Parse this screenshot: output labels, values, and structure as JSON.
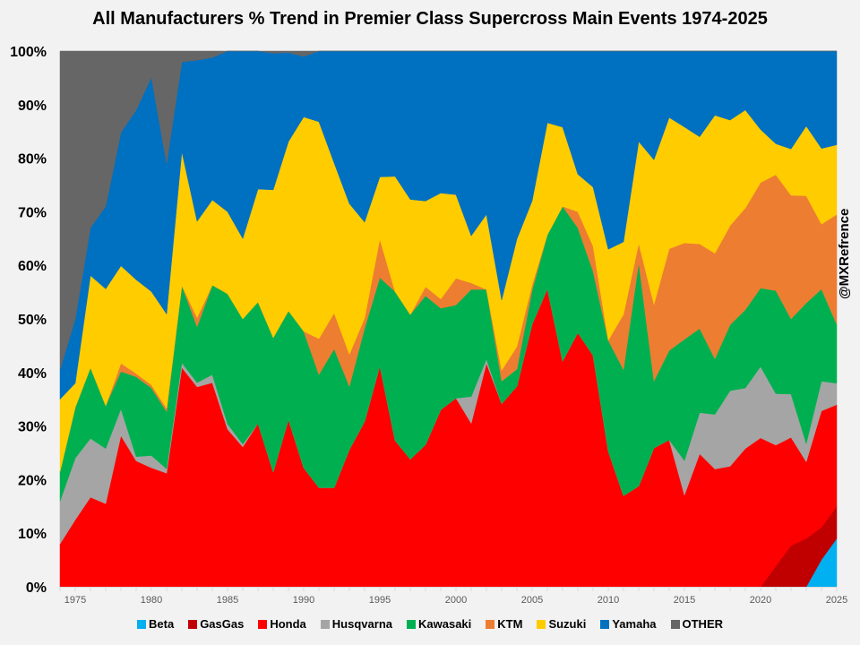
{
  "chart_data": {
    "type": "area",
    "stacked": "percent",
    "title": "All Manufacturers % Trend in Premier Class Supercross Main Events 1974-2025",
    "xlabel": "",
    "ylabel": "",
    "ylim": [
      0,
      100
    ],
    "xlim": [
      1974,
      2025
    ],
    "y_ticks": [
      "0%",
      "10%",
      "20%",
      "30%",
      "40%",
      "50%",
      "60%",
      "70%",
      "80%",
      "90%",
      "100%"
    ],
    "x_ticks": [
      "1975",
      "1980",
      "1985",
      "1990",
      "1995",
      "2000",
      "2005",
      "2010",
      "2015",
      "2020",
      "2025"
    ],
    "legend_position": "bottom",
    "watermark": "@MXRefrence",
    "x": [
      1974,
      1975,
      1976,
      1977,
      1978,
      1979,
      1980,
      1981,
      1982,
      1983,
      1984,
      1985,
      1986,
      1987,
      1988,
      1989,
      1990,
      1991,
      1992,
      1993,
      1994,
      1995,
      1996,
      1997,
      1998,
      1999,
      2000,
      2001,
      2002,
      2003,
      2004,
      2005,
      2006,
      2007,
      2008,
      2009,
      2010,
      2011,
      2012,
      2013,
      2014,
      2015,
      2016,
      2017,
      2018,
      2019,
      2020,
      2021,
      2022,
      2023,
      2024,
      2025
    ],
    "series": [
      {
        "name": "Beta",
        "color": "#00b0f0",
        "values": [
          0,
          0,
          0,
          0,
          0,
          0,
          0,
          0,
          0,
          0,
          0,
          0,
          0,
          0,
          0,
          0,
          0,
          0,
          0,
          0,
          0,
          0,
          0,
          0,
          0,
          0,
          0,
          0,
          0,
          0,
          0,
          0,
          0,
          0,
          0,
          0,
          0,
          0,
          0,
          0,
          0,
          0,
          0,
          0,
          0,
          0,
          0,
          0,
          0,
          0,
          5,
          9
        ]
      },
      {
        "name": "GasGas",
        "color": "#c00000",
        "values": [
          0,
          0,
          0,
          0,
          0,
          0,
          0,
          0,
          0,
          0,
          0,
          0,
          0,
          0,
          0,
          0,
          0,
          0,
          0,
          0,
          0,
          0,
          0,
          0,
          0,
          0,
          0,
          0,
          0,
          0,
          0,
          0,
          0,
          0,
          0,
          0,
          0,
          0,
          0,
          0,
          0,
          0,
          0,
          0,
          0,
          0,
          0,
          4,
          8,
          9,
          6,
          6
        ]
      },
      {
        "name": "Honda",
        "color": "#ff0000",
        "values": [
          8,
          12.5,
          16.7,
          15.5,
          28.2,
          23.5,
          22.2,
          21.2,
          40.9,
          37.2,
          38.1,
          29.4,
          26.1,
          30.4,
          21.4,
          31.2,
          22.2,
          18.5,
          18.5,
          25.6,
          30.8,
          41.2,
          27.3,
          23.8,
          26.5,
          32.4,
          35.2,
          30.5,
          41.7,
          33.8,
          37.3,
          48.5,
          55.6,
          42.1,
          47.4,
          43.2,
          25.3,
          16.3,
          18.8,
          25.9,
          27.4,
          18.8,
          24.8,
          22,
          22.5,
          25.8,
          27.5,
          23.5,
          21,
          14.3,
          21.5,
          19
        ]
      },
      {
        "name": "Husqvarna",
        "color": "#a5a5a5",
        "values": [
          8,
          11.5,
          11,
          10.3,
          5,
          0.8,
          2.3,
          0.8,
          0.9,
          0.8,
          1.5,
          1,
          0.5,
          0,
          0,
          0,
          0,
          0,
          0,
          0,
          0,
          0,
          0,
          0,
          0,
          0,
          0,
          5,
          0.8,
          0,
          0,
          0,
          0,
          0,
          0,
          0,
          0,
          0,
          0,
          0,
          0,
          7.1,
          7.7,
          10.2,
          14.1,
          11.3,
          13.2,
          10,
          8.4,
          3.4,
          5.5,
          4
        ]
      },
      {
        "name": "Kawasaki",
        "color": "#00b050",
        "values": [
          5.5,
          9.5,
          13.2,
          8,
          7,
          14.9,
          12.6,
          10.7,
          14.4,
          10.4,
          16.7,
          24.3,
          23.4,
          22.6,
          25.1,
          20.3,
          25.5,
          21.1,
          25.9,
          11.8,
          17.4,
          16.5,
          27.8,
          27,
          27.8,
          18.6,
          17.4,
          20,
          13,
          4.2,
          3.2,
          6.3,
          10.1,
          28.9,
          19.6,
          15.7,
          20.7,
          22.6,
          41.7,
          12.5,
          16.7,
          24.9,
          15.7,
          10.4,
          12.3,
          14.6,
          14.5,
          20,
          14.6,
          26.2,
          17,
          11
        ]
      },
      {
        "name": "KTM",
        "color": "#ed7d31",
        "values": [
          0,
          0,
          0,
          0,
          1.5,
          0.6,
          0.6,
          0.6,
          0,
          1.7,
          0,
          0,
          0,
          0,
          0,
          0,
          0,
          6.7,
          6.7,
          6,
          1.9,
          7.2,
          0,
          0,
          1.7,
          1.7,
          5,
          1.2,
          0,
          2,
          4.2,
          1,
          0,
          0,
          3,
          4.7,
          0,
          9.9,
          3.6,
          14.3,
          19,
          19.8,
          15.8,
          19.7,
          18.5,
          19,
          19.5,
          22.5,
          24,
          20,
          12,
          20.5
        ]
      },
      {
        "name": "Suzuki",
        "color": "#ffcc00",
        "values": [
          13.5,
          4.5,
          17.2,
          21.8,
          18.2,
          17.5,
          17.4,
          17.6,
          25,
          17.9,
          15.9,
          15.3,
          15,
          21,
          27.6,
          31.6,
          40,
          40.5,
          28,
          28.1,
          17.9,
          11.6,
          21.5,
          21.5,
          16,
          19.4,
          15.6,
          8.8,
          14,
          13,
          20,
          15.5,
          20.9,
          14.8,
          7,
          11,
          17,
          13,
          19,
          27,
          24.5,
          23.8,
          20,
          25.8,
          19.7,
          18.3,
          9.8,
          6,
          9,
          13,
          14,
          13
        ]
      },
      {
        "name": "Yamaha",
        "color": "#0070c0",
        "values": [
          5.5,
          12,
          8.9,
          15.4,
          24.9,
          31.7,
          40,
          28.1,
          16.8,
          30,
          26.6,
          30,
          35,
          25.7,
          25.5,
          16.6,
          11.3,
          13.2,
          20.9,
          28.5,
          31.9,
          23.5,
          23.4,
          27.7,
          28,
          26,
          26.8,
          34.5,
          30.5,
          46,
          35,
          27.7,
          13.4,
          14.2,
          23,
          25.4,
          37,
          34.2,
          16.9,
          20.3,
          12.4,
          15.6,
          16,
          12,
          12.9,
          11,
          14.5,
          18,
          19,
          14,
          18,
          17.5
        ]
      },
      {
        "name": "OTHER",
        "color": "#666666",
        "values": [
          59.5,
          50,
          33,
          29,
          15.2,
          11,
          4.9,
          21,
          2,
          1.7,
          1.2,
          0,
          0,
          0,
          0.4,
          0.3,
          1,
          0,
          0,
          0,
          0,
          0,
          0,
          0,
          0,
          0,
          0,
          0,
          0,
          0,
          0,
          0,
          0,
          0,
          0,
          0,
          0,
          0,
          0,
          0,
          0,
          0,
          0,
          0,
          0,
          0,
          0,
          0,
          0,
          0,
          0,
          0
        ]
      }
    ]
  }
}
